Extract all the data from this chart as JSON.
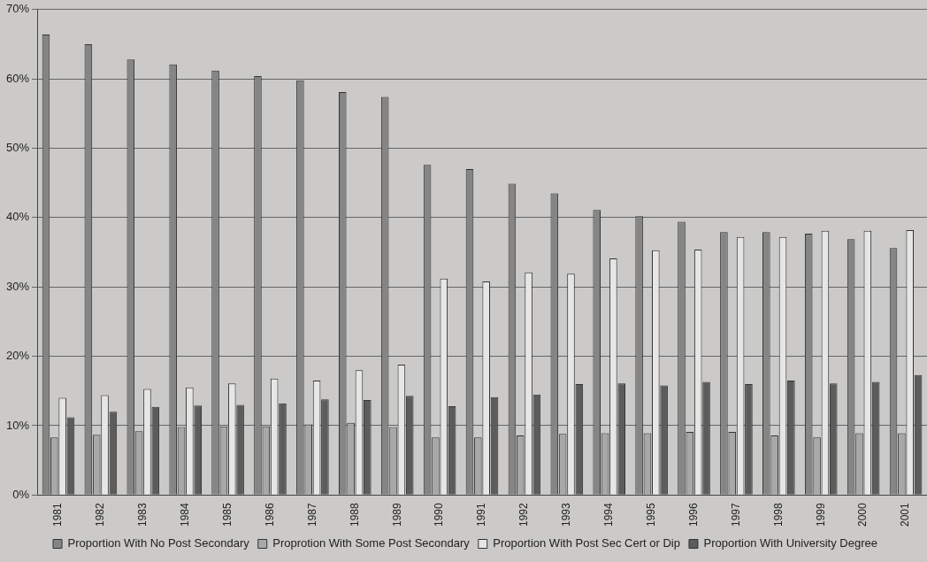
{
  "chart_data": {
    "type": "bar",
    "categories": [
      "1981",
      "1982",
      "1983",
      "1984",
      "1985",
      "1986",
      "1987",
      "1988",
      "1989",
      "1990",
      "1991",
      "1992",
      "1993",
      "1994",
      "1995",
      "1996",
      "1997",
      "1998",
      "1999",
      "2000",
      "2001"
    ],
    "series": [
      {
        "name": "Proportion With No Post Secondary",
        "color": "#858585",
        "values": [
          66.4,
          65,
          62.8,
          62.1,
          61.2,
          60.4,
          59.8,
          58.1,
          57.4,
          47.6,
          47.0,
          44.9,
          43.5,
          41.1,
          40.2,
          39.4,
          37.9,
          37.9,
          37.7,
          36.9,
          35.6
        ]
      },
      {
        "name": "Proprotion With Some Post Secondary",
        "color": "#a8a8a8",
        "values": [
          8.3,
          8.7,
          9.2,
          9.8,
          9.9,
          9.9,
          10.2,
          10.4,
          9.8,
          8.3,
          8.3,
          8.6,
          8.8,
          8.9,
          8.9,
          9.1,
          9.1,
          8.6,
          8.3,
          8.9,
          8.9
        ]
      },
      {
        "name": "Proportion With Post Sec Cert or Dip",
        "color": "#e6e6e6",
        "values": [
          14.0,
          14.4,
          15.3,
          15.5,
          16.1,
          16.8,
          16.5,
          18.0,
          18.8,
          31.2,
          30.8,
          32.1,
          31.9,
          34.1,
          35.3,
          35.4,
          37.2,
          37.2,
          38.1,
          38.1,
          38.2
        ]
      },
      {
        "name": "Proportion With University Degree",
        "color": "#5c5c5c",
        "values": [
          11.2,
          12.0,
          12.7,
          12.9,
          13.0,
          13.2,
          13.8,
          13.7,
          14.3,
          12.8,
          14.1,
          14.5,
          16.0,
          16.1,
          15.8,
          16.3,
          16.0,
          16.5,
          16.1,
          16.3,
          17.3
        ]
      }
    ],
    "ylim": [
      0,
      70
    ],
    "yticks": [
      {
        "value": 0,
        "label": "0%"
      },
      {
        "value": 10,
        "label": "10%"
      },
      {
        "value": 20,
        "label": "20%"
      },
      {
        "value": 30,
        "label": "30%"
      },
      {
        "value": 40,
        "label": "40%"
      },
      {
        "value": 50,
        "label": "50%"
      },
      {
        "value": 60,
        "label": "60%"
      },
      {
        "value": 70,
        "label": "70%"
      }
    ],
    "grid": "y",
    "legend": "bottom"
  }
}
